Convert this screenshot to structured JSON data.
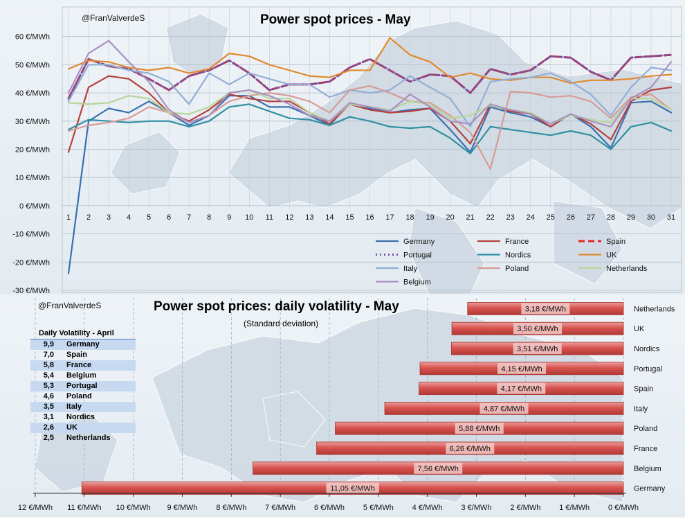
{
  "chart_data": [
    {
      "type": "line",
      "title": "Power spot prices - May",
      "watermark": "@FranValverdeS",
      "x": [
        1,
        2,
        3,
        4,
        5,
        6,
        7,
        8,
        9,
        10,
        11,
        12,
        13,
        14,
        15,
        16,
        17,
        18,
        19,
        20,
        21,
        22,
        23,
        24,
        25,
        26,
        27,
        28,
        29,
        30,
        31
      ],
      "ylim": [
        -30,
        70
      ],
      "yticks": [
        -30,
        -20,
        -10,
        0,
        10,
        20,
        30,
        40,
        50,
        60
      ],
      "ytick_labels": [
        "-30 €/MWh",
        "-20 €/MWh",
        "-10 €/MWh",
        "0 €/MWh",
        "10 €/MWh",
        "20 €/MWh",
        "30 €/MWh",
        "40 €/MWh",
        "50 €/MWh",
        "60 €/MWh"
      ],
      "grid": true,
      "legend_position": "bottom-right",
      "series": [
        {
          "name": "Germany",
          "color": "#3a6fb0",
          "style": "solid",
          "values": [
            -24,
            30,
            34.5,
            33,
            37,
            33,
            28.5,
            32,
            39,
            39,
            35,
            35,
            32,
            28.5,
            36.5,
            34.5,
            33,
            34,
            34.5,
            27,
            19,
            35,
            33,
            31.5,
            28,
            32.5,
            28,
            20.5,
            36.5,
            37,
            33
          ]
        },
        {
          "name": "France",
          "color": "#b5403c",
          "style": "solid",
          "values": [
            19,
            42,
            46,
            45,
            40,
            33,
            30,
            34,
            39.5,
            38,
            37,
            37,
            33,
            29,
            36,
            34,
            33,
            33.5,
            34.5,
            30,
            22,
            36,
            33.5,
            32.5,
            28,
            32.5,
            29,
            23.5,
            37,
            41,
            42
          ]
        },
        {
          "name": "Spain",
          "color": "#e02a24",
          "style": "dashed",
          "values": [
            38,
            52,
            49.5,
            48.5,
            45,
            41,
            46,
            48,
            51.5,
            47,
            41,
            43,
            43,
            44,
            49,
            52,
            48,
            44,
            46.5,
            46,
            40,
            48.5,
            46.5,
            48,
            53,
            52.5,
            47.5,
            44.5,
            52.5,
            53,
            53.5
          ]
        },
        {
          "name": "Portugal",
          "color": "#7b4fa0",
          "style": "dotted",
          "values": [
            38,
            52,
            49.5,
            48.5,
            45,
            41,
            46,
            48,
            51.5,
            47,
            41,
            43,
            43,
            44,
            49,
            52,
            48,
            44,
            46.5,
            46,
            40,
            48.5,
            46.5,
            48,
            53,
            52.5,
            47.5,
            44.5,
            52.5,
            53,
            53.5
          ]
        },
        {
          "name": "Nordics",
          "color": "#2f8fa3",
          "style": "solid",
          "values": [
            27,
            30.5,
            30,
            29.5,
            30,
            30,
            28,
            30,
            35,
            36,
            33.5,
            31,
            30.5,
            28.5,
            31.5,
            30,
            28,
            27.5,
            28,
            24,
            18.5,
            28,
            27,
            26,
            25,
            26.5,
            25,
            20,
            28,
            29.5,
            26.5
          ]
        },
        {
          "name": "UK",
          "color": "#e0892e",
          "style": "solid",
          "values": [
            48.5,
            51.5,
            51,
            49,
            48,
            49,
            47,
            48.5,
            54,
            53,
            50,
            48,
            46,
            45.5,
            48,
            48,
            59.5,
            53.5,
            51,
            45.5,
            47,
            45,
            44.5,
            45.5,
            45.5,
            43.5,
            44.5,
            44.5,
            45,
            46,
            46.5
          ]
        },
        {
          "name": "Italy",
          "color": "#92aed6",
          "style": "solid",
          "values": [
            37,
            50,
            50,
            48,
            47,
            44,
            36,
            47,
            43,
            47,
            45,
            43,
            43,
            38.5,
            41,
            40,
            41,
            46,
            42,
            38,
            28,
            44,
            45,
            45.5,
            47,
            44,
            39.5,
            32,
            42,
            49,
            48
          ]
        },
        {
          "name": "Poland",
          "color": "#d79b95",
          "style": "solid",
          "values": [
            26.5,
            28.5,
            29.5,
            31,
            35,
            33,
            29.5,
            32,
            37,
            39,
            40,
            39,
            37,
            33,
            41,
            42.5,
            40,
            37,
            36.5,
            32,
            26,
            13,
            40.5,
            40,
            38.5,
            39,
            37,
            31,
            38.5,
            39.5,
            34
          ]
        },
        {
          "name": "Netherlands",
          "color": "#b7d59a",
          "style": "solid",
          "values": [
            36.5,
            36,
            36.5,
            39,
            38,
            33,
            32.5,
            35,
            40,
            41,
            38,
            38,
            33,
            30,
            36,
            35,
            34,
            37,
            36,
            31,
            32,
            35.5,
            34,
            33,
            29,
            32,
            30.5,
            29.5,
            38,
            38,
            34
          ]
        },
        {
          "name": "Belgium",
          "color": "#a990c1",
          "style": "solid",
          "values": [
            40,
            54,
            58.5,
            51,
            44,
            34,
            29.5,
            32,
            40,
            41,
            39,
            36,
            32,
            30,
            36.5,
            35,
            33.5,
            39.5,
            35,
            30,
            29,
            36,
            34,
            32.5,
            29,
            32.5,
            30,
            28,
            38,
            42,
            51
          ]
        }
      ]
    },
    {
      "type": "bar",
      "orientation": "horizontal",
      "title": "Power spot prices: daily volatility - May",
      "subtitle": "(Standard deviation)",
      "watermark": "@FranValverdeS",
      "categories": [
        "Netherlands",
        "UK",
        "Nordics",
        "Portugal",
        "Spain",
        "Italy",
        "Poland",
        "France",
        "Belgium",
        "Germany"
      ],
      "values": [
        3.18,
        3.5,
        3.51,
        4.15,
        4.17,
        4.87,
        5.88,
        6.26,
        7.56,
        11.05
      ],
      "value_labels": [
        "3,18 €/MWh",
        "3,50 €/MWh",
        "3,51 €/MWh",
        "4,15 €/MWh",
        "4,17 €/MWh",
        "4,87 €/MWh",
        "5,88 €/MWh",
        "6,26 €/MWh",
        "7,56 €/MWh",
        "11,05 €/MWh"
      ],
      "xlim": [
        0,
        12
      ],
      "x_reversed": true,
      "xticks": [
        12,
        11,
        10,
        9,
        8,
        7,
        6,
        5,
        4,
        3,
        2,
        1,
        0
      ],
      "xtick_labels": [
        "12 €/MWh",
        "11 €/MWh",
        "10 €/MWh",
        "9 €/MWh",
        "8 €/MWh",
        "7 €/MWh",
        "6 €/MWh",
        "5 €/MWh",
        "4 €/MWh",
        "3 €/MWh",
        "2 €/MWh",
        "1 €/MWh",
        "0 €/MWh"
      ],
      "bar_color": "#d9534f",
      "label_position": "right"
    },
    {
      "type": "table",
      "title": "Daily Volatility - April",
      "rows": [
        {
          "value": "9,9",
          "country": "Germany"
        },
        {
          "value": "7,0",
          "country": "Spain"
        },
        {
          "value": "5,8",
          "country": "France"
        },
        {
          "value": "5,4",
          "country": "Belgium"
        },
        {
          "value": "5,3",
          "country": "Portugal"
        },
        {
          "value": "4,6",
          "country": "Poland"
        },
        {
          "value": "3,5",
          "country": "Italy"
        },
        {
          "value": "3,1",
          "country": "Nordics"
        },
        {
          "value": "2,6",
          "country": "UK"
        },
        {
          "value": "2,5",
          "country": "Netherlands"
        }
      ]
    }
  ]
}
